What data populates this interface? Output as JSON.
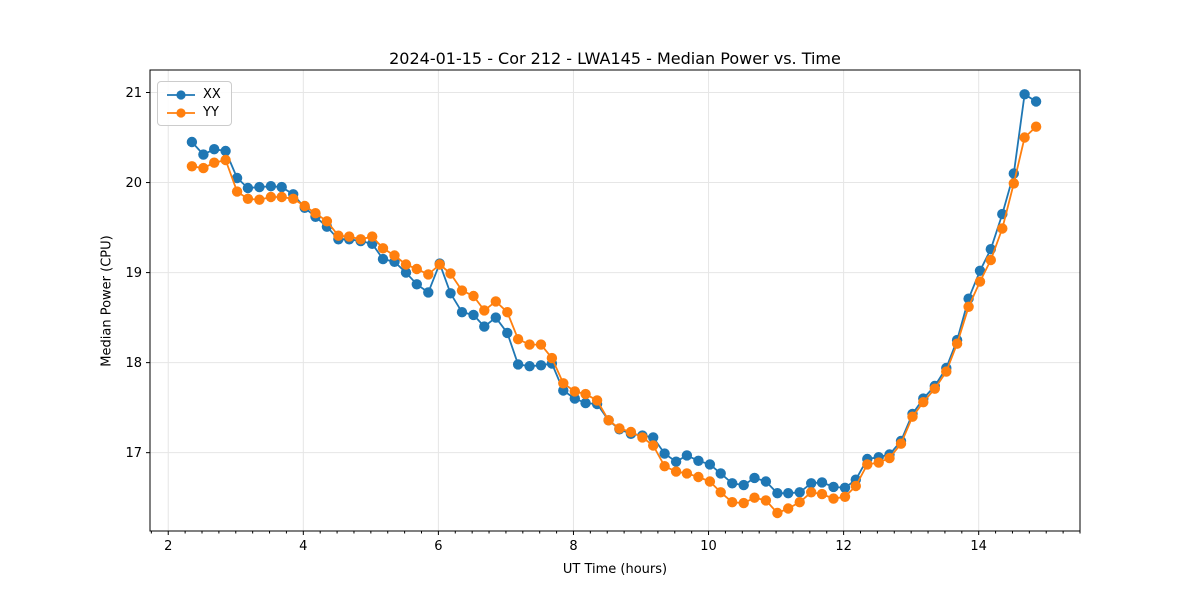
{
  "chart_data": {
    "type": "line",
    "title": "2024-01-15 - Cor 212 - LWA145 - Median Power vs. Time",
    "xlabel": "UT Time (hours)",
    "ylabel": "Median Power (CPU)",
    "xlim": [
      1.73,
      15.5
    ],
    "ylim": [
      16.13,
      21.25
    ],
    "x_ticks": [
      2,
      4,
      6,
      8,
      10,
      12,
      14
    ],
    "y_ticks": [
      17,
      18,
      19,
      20,
      21
    ],
    "x_minor_tick_step": 0.25,
    "grid": true,
    "grid_color": "#e6e6e6",
    "legend_position": "upper left",
    "marker": "circle",
    "x": [
      2.35,
      2.52,
      2.68,
      2.85,
      3.02,
      3.18,
      3.35,
      3.52,
      3.68,
      3.85,
      4.02,
      4.18,
      4.35,
      4.52,
      4.68,
      4.85,
      5.02,
      5.18,
      5.35,
      5.52,
      5.68,
      5.85,
      6.02,
      6.18,
      6.35,
      6.52,
      6.68,
      6.85,
      7.02,
      7.18,
      7.35,
      7.52,
      7.68,
      7.85,
      8.02,
      8.18,
      8.35,
      8.52,
      8.68,
      8.85,
      9.02,
      9.18,
      9.35,
      9.52,
      9.68,
      9.85,
      10.02,
      10.18,
      10.35,
      10.52,
      10.68,
      10.85,
      11.02,
      11.18,
      11.35,
      11.52,
      11.68,
      11.85,
      12.02,
      12.18,
      12.35,
      12.52,
      12.68,
      12.85,
      13.02,
      13.18,
      13.35,
      13.52,
      13.68,
      13.85,
      14.02,
      14.18,
      14.35,
      14.52,
      14.68,
      14.85
    ],
    "series": [
      {
        "name": "XX",
        "color": "#1f77b4",
        "values": [
          20.45,
          20.31,
          20.37,
          20.35,
          20.05,
          19.94,
          19.95,
          19.96,
          19.95,
          19.87,
          19.72,
          19.62,
          19.51,
          19.37,
          19.37,
          19.35,
          19.32,
          19.15,
          19.12,
          19.0,
          18.87,
          18.78,
          19.1,
          18.77,
          18.56,
          18.53,
          18.4,
          18.5,
          18.33,
          17.98,
          17.96,
          17.97,
          17.99,
          17.69,
          17.6,
          17.55,
          17.54,
          17.36,
          17.26,
          17.21,
          17.19,
          17.17,
          16.99,
          16.9,
          16.97,
          16.91,
          16.87,
          16.77,
          16.66,
          16.64,
          16.72,
          16.68,
          16.55,
          16.55,
          16.56,
          16.66,
          16.67,
          16.62,
          16.61,
          16.7,
          16.93,
          16.95,
          16.98,
          17.13,
          17.43,
          17.6,
          17.74,
          17.94,
          18.25,
          18.71,
          19.02,
          19.26,
          19.65,
          20.1,
          20.98,
          20.9
        ]
      },
      {
        "name": "YY",
        "color": "#ff7f0e",
        "values": [
          20.18,
          20.16,
          20.22,
          20.25,
          19.9,
          19.82,
          19.81,
          19.84,
          19.84,
          19.82,
          19.74,
          19.66,
          19.57,
          19.41,
          19.4,
          19.37,
          19.4,
          19.27,
          19.19,
          19.09,
          19.04,
          18.98,
          19.09,
          18.99,
          18.8,
          18.74,
          18.58,
          18.68,
          18.56,
          18.26,
          18.2,
          18.2,
          18.05,
          17.77,
          17.68,
          17.65,
          17.58,
          17.36,
          17.27,
          17.23,
          17.17,
          17.08,
          16.85,
          16.79,
          16.77,
          16.73,
          16.68,
          16.56,
          16.45,
          16.44,
          16.5,
          16.47,
          16.33,
          16.38,
          16.45,
          16.56,
          16.54,
          16.49,
          16.51,
          16.63,
          16.87,
          16.89,
          16.94,
          17.1,
          17.4,
          17.56,
          17.71,
          17.9,
          18.21,
          18.62,
          18.9,
          19.14,
          19.49,
          19.99,
          20.5,
          20.62
        ]
      }
    ]
  }
}
